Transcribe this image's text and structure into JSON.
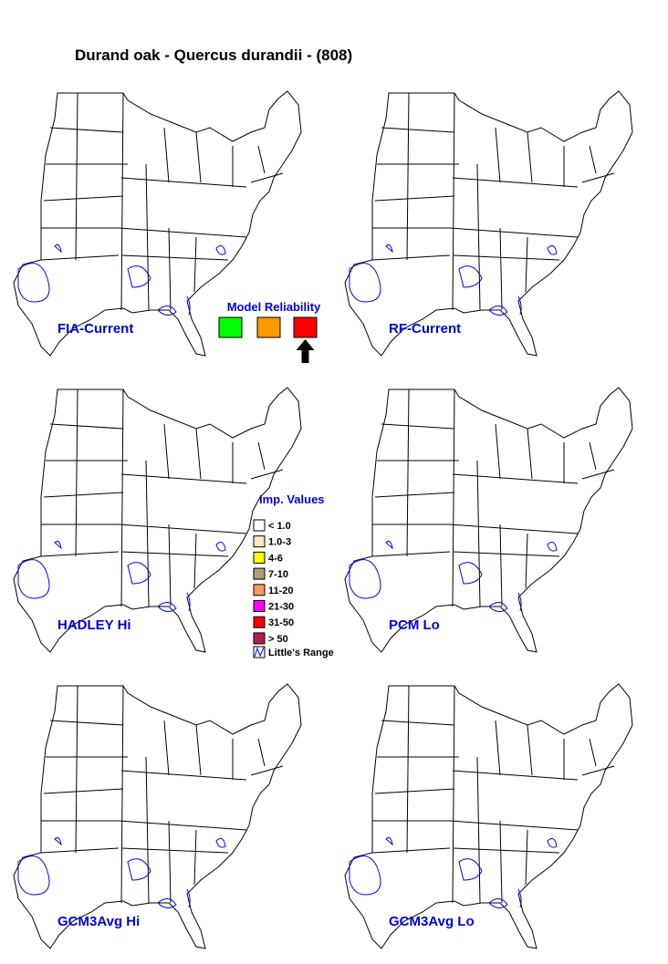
{
  "title": "Durand oak - Quercus durandii - (808)",
  "maps": [
    {
      "label": "FIA-Current"
    },
    {
      "label": "RF-Current"
    },
    {
      "label": "HADLEY Hi"
    },
    {
      "label": "PCM Lo"
    },
    {
      "label": "GCM3Avg Hi"
    },
    {
      "label": "GCM3Avg Lo"
    }
  ],
  "model_reliability": {
    "title": "Model Reliability",
    "colors": [
      "#00ff00",
      "#ff9900",
      "#ff0000"
    ],
    "selected": 2
  },
  "legend": {
    "title": "Imp. Values",
    "items": [
      {
        "label": "< 1.0",
        "color": "#ffffff"
      },
      {
        "label": "1.0-3",
        "color": "#ffe8c0"
      },
      {
        "label": "4-6",
        "color": "#ffff00"
      },
      {
        "label": "7-10",
        "color": "#b0a070"
      },
      {
        "label": "11-20",
        "color": "#ff9966"
      },
      {
        "label": "21-30",
        "color": "#ff00ff"
      },
      {
        "label": "31-50",
        "color": "#ff0000"
      },
      {
        "label": "> 50",
        "color": "#aa2255"
      }
    ],
    "range_label": "Little's Range"
  }
}
